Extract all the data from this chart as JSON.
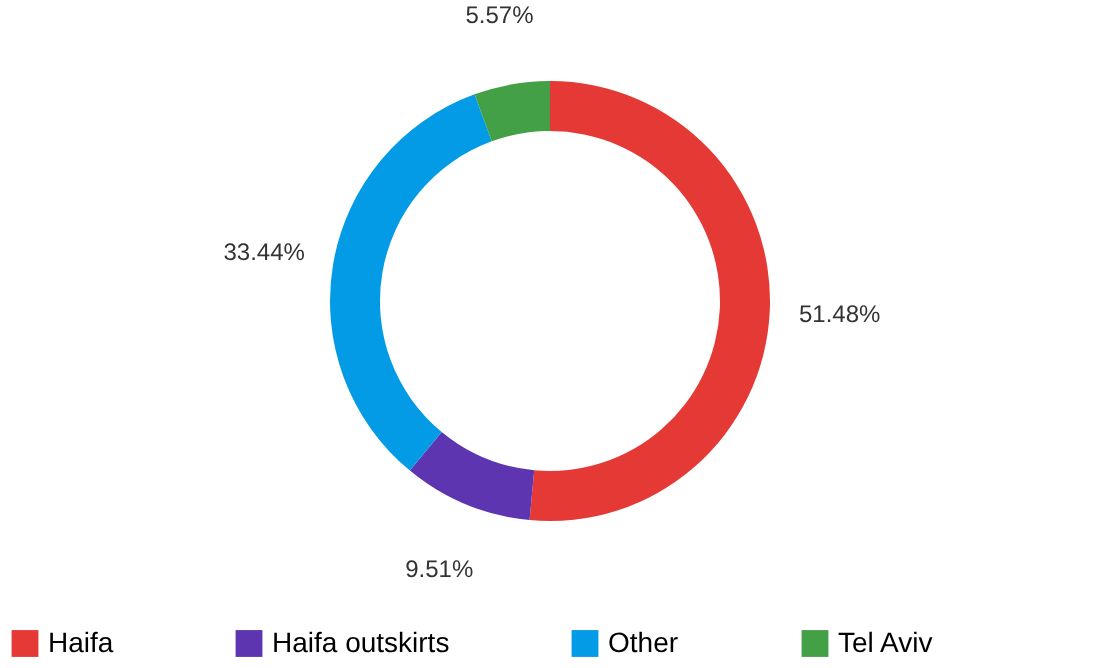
{
  "chart_data": {
    "type": "donut",
    "categories": [
      "Haifa",
      "Haifa outskirts",
      "Other",
      "Tel Aviv"
    ],
    "values": [
      51.48,
      9.51,
      33.44,
      5.57
    ],
    "colors": [
      "#e53935",
      "#5e35b1",
      "#039be5",
      "#43a047"
    ],
    "value_labels": [
      "51.48%",
      "9.51%",
      "33.44%",
      "5.57%"
    ],
    "legend": "bottom"
  }
}
